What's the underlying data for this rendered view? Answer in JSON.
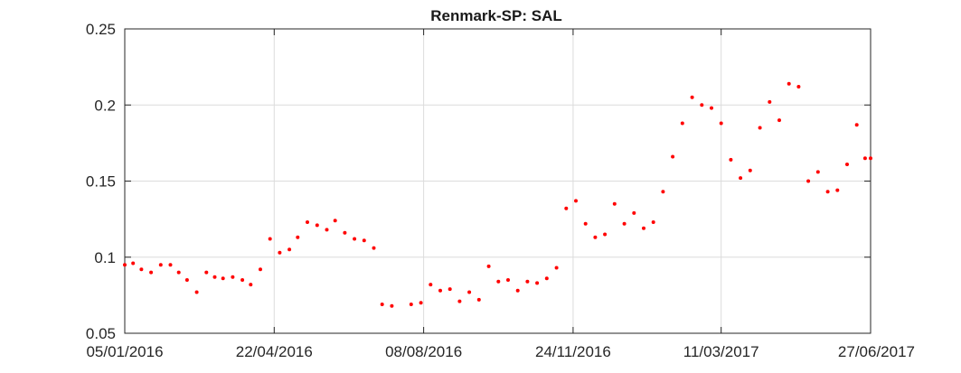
{
  "chart_data": {
    "type": "scatter",
    "title": "Renmark-SP: SAL",
    "xlabel": "",
    "ylabel": "",
    "xlim": [
      "2016-01-05",
      "2017-06-27"
    ],
    "ylim": [
      0.05,
      0.25
    ],
    "yticks": [
      0.05,
      0.1,
      0.15,
      0.2,
      0.25
    ],
    "ytick_labels": [
      "0.05",
      "0.1",
      "0.15",
      "0.2",
      "0.25"
    ],
    "xticks": [
      "2016-01-05",
      "2016-04-22",
      "2016-08-08",
      "2016-11-24",
      "2017-03-11",
      "2017-06-27"
    ],
    "xtick_labels": [
      "05/01/2016",
      "22/04/2016",
      "08/08/2016",
      "24/11/2016",
      "11/03/2017",
      "27/06/2017"
    ],
    "grid": true,
    "marker_color": "#ff0000",
    "series": [
      {
        "x": [
          "2016-01-05",
          "2016-01-11",
          "2016-01-17",
          "2016-01-24",
          "2016-01-31",
          "2016-02-07",
          "2016-02-13",
          "2016-02-19",
          "2016-02-26",
          "2016-03-04",
          "2016-03-10",
          "2016-03-16",
          "2016-03-23",
          "2016-03-30",
          "2016-04-05",
          "2016-04-12",
          "2016-04-19",
          "2016-04-26",
          "2016-05-03",
          "2016-05-09",
          "2016-05-16",
          "2016-05-23",
          "2016-05-30",
          "2016-06-05",
          "2016-06-12",
          "2016-06-19",
          "2016-06-26",
          "2016-07-03",
          "2016-07-09",
          "2016-07-16",
          "2016-07-30",
          "2016-08-06",
          "2016-08-13",
          "2016-08-20",
          "2016-08-27",
          "2016-09-03",
          "2016-09-10",
          "2016-09-17",
          "2016-09-24",
          "2016-10-01",
          "2016-10-08",
          "2016-10-15",
          "2016-10-22",
          "2016-10-29",
          "2016-11-05",
          "2016-11-12",
          "2016-11-19",
          "2016-11-26",
          "2016-12-03",
          "2016-12-10",
          "2016-12-17",
          "2016-12-24",
          "2016-12-31",
          "2017-01-07",
          "2017-01-14",
          "2017-01-21",
          "2017-01-28",
          "2017-02-04",
          "2017-02-11",
          "2017-02-18",
          "2017-02-25",
          "2017-03-04",
          "2017-03-11",
          "2017-03-18",
          "2017-03-25",
          "2017-04-01",
          "2017-04-08",
          "2017-04-15",
          "2017-04-22",
          "2017-04-29",
          "2017-05-06",
          "2017-05-13",
          "2017-05-20",
          "2017-05-27",
          "2017-06-03",
          "2017-06-10",
          "2017-06-17",
          "2017-06-23",
          "2017-06-27"
        ],
        "y": [
          0.095,
          0.096,
          0.092,
          0.09,
          0.095,
          0.095,
          0.09,
          0.085,
          0.077,
          0.09,
          0.087,
          0.086,
          0.087,
          0.085,
          0.082,
          0.092,
          0.112,
          0.103,
          0.105,
          0.113,
          0.123,
          0.121,
          0.118,
          0.124,
          0.116,
          0.112,
          0.111,
          0.106,
          0.069,
          0.068,
          0.069,
          0.07,
          0.082,
          0.078,
          0.079,
          0.071,
          0.077,
          0.072,
          0.094,
          0.084,
          0.085,
          0.078,
          0.084,
          0.083,
          0.086,
          0.093,
          0.132,
          0.137,
          0.122,
          0.113,
          0.115,
          0.135,
          0.122,
          0.129,
          0.119,
          0.123,
          0.143,
          0.166,
          0.188,
          0.205,
          0.2,
          0.198,
          0.188,
          0.164,
          0.152,
          0.157,
          0.185,
          0.202,
          0.19,
          0.214,
          0.212,
          0.15,
          0.156,
          0.143,
          0.144,
          0.161,
          0.187,
          0.165,
          0.165
        ]
      }
    ]
  }
}
